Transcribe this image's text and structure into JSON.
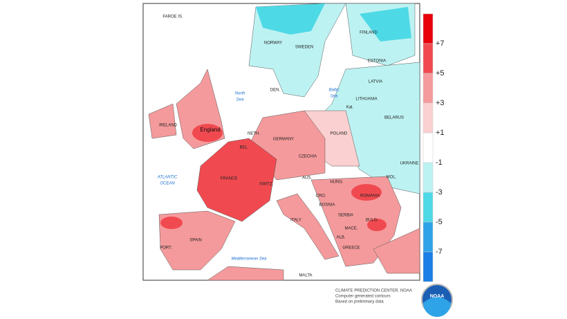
{
  "map": {
    "labels": [
      "FAROE IS.",
      "NORWAY",
      "SWEDEN",
      "FINLAND",
      "ESTONIA",
      "LATVIA",
      "LITHUANIA",
      "BELARUS",
      "POLAND",
      "UKRAINE",
      "MOL.",
      "ROMANIA",
      "BULG.",
      "SERBIA",
      "BOSNIA",
      "CRO.",
      "HUNG.",
      "AUS.",
      "SWITZ.",
      "CZECHIA",
      "GERMANY",
      "NETH.",
      "BEL.",
      "FRANCE",
      "England",
      "IRELAND",
      "SPAIN",
      "PORT.",
      "ITALY",
      "MALTA",
      "MACE.",
      "ALB.",
      "GREECE",
      "DEN.",
      "Kal."
    ],
    "seas": [
      "North",
      "Sea",
      "Baltic",
      "Sea",
      "ATLANTIC",
      "OCEAN",
      "Mediterranean Sea"
    ]
  },
  "legend": {
    "labels": [
      "+7",
      "+5",
      "+3",
      "+1",
      "-1",
      "-3",
      "-5",
      "-7"
    ],
    "colors": [
      "#e8000b",
      "#f04a50",
      "#f59a9c",
      "#fbd0d0",
      "#ffffff",
      "#bdf2f2",
      "#4ed9e6",
      "#2ea3e8",
      "#1a7fe6"
    ]
  },
  "credits": [
    "CLIMATE PREDICTION CENTER, NOAA",
    "Computer generated contours",
    "Based on preliminary data"
  ],
  "logo": "NOAA"
}
